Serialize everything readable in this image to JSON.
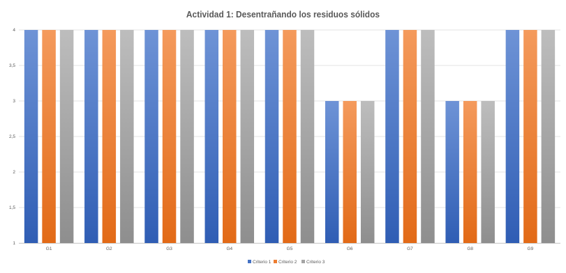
{
  "chart_data": {
    "type": "bar",
    "title": "Actividad 1: Desentrañando los residuos sólidos",
    "categories": [
      "G1",
      "G2",
      "G3",
      "G4",
      "G5",
      "G6",
      "G7",
      "G8",
      "G9"
    ],
    "series": [
      {
        "name": "Criterio 1",
        "color": "#4472C4",
        "values": [
          4,
          4,
          4,
          4,
          4,
          3,
          4,
          3,
          4
        ]
      },
      {
        "name": "Criterio 2",
        "color": "#ED7D31",
        "values": [
          4,
          4,
          4,
          4,
          4,
          3,
          4,
          3,
          4
        ]
      },
      {
        "name": "Criterio 3",
        "color": "#A5A5A5",
        "values": [
          4,
          4,
          4,
          4,
          4,
          3,
          4,
          3,
          4
        ]
      }
    ],
    "yticks": [
      "1",
      "1,5",
      "2",
      "2,5",
      "3",
      "3,5",
      "4"
    ],
    "ylim": [
      1,
      4
    ],
    "grid": true,
    "legend_position": "bottom"
  }
}
